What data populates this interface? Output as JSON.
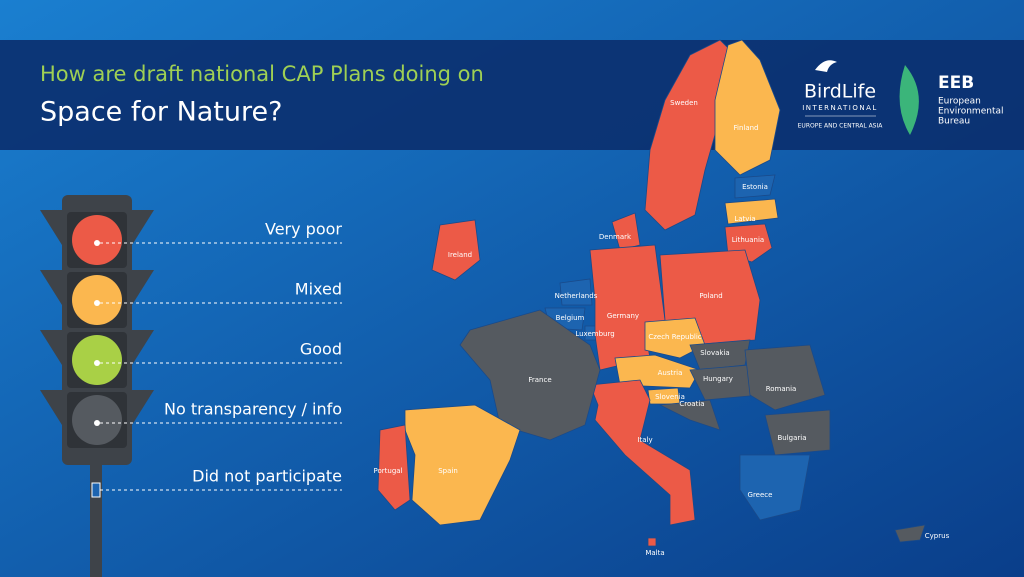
{
  "header": {
    "title_line1": "How are draft national CAP Plans doing on",
    "title_line2": "Space for Nature?"
  },
  "logos": {
    "birdlife": "BirdLife",
    "birdlife_sub": "INTERNATIONAL",
    "birdlife_region": "EUROPE AND CENTRAL ASIA",
    "eeb": "EEB",
    "eeb_line1": "European",
    "eeb_line2": "Environmental",
    "eeb_line3": "Bureau"
  },
  "legend": [
    {
      "label": "Very poor",
      "color": "#ec5a47"
    },
    {
      "label": "Mixed",
      "color": "#fbb74f"
    },
    {
      "label": "Good",
      "color": "#a9d046"
    },
    {
      "label": "No transparency / info",
      "color": "#555a60"
    },
    {
      "label": "Did not participate",
      "color": "#1d64b0"
    }
  ],
  "countries": [
    {
      "name": "Sweden",
      "color": "#ec5a47"
    },
    {
      "name": "Finland",
      "color": "#fbb74f"
    },
    {
      "name": "Estonia",
      "color": "#1d64b0"
    },
    {
      "name": "Latvia",
      "color": "#fbb74f"
    },
    {
      "name": "Lithuania",
      "color": "#ec5a47"
    },
    {
      "name": "Denmark",
      "color": "#ec5a47"
    },
    {
      "name": "Ireland",
      "color": "#ec5a47"
    },
    {
      "name": "Netherlands",
      "color": "#1d64b0"
    },
    {
      "name": "Belgium",
      "color": "#1d64b0"
    },
    {
      "name": "Luxemburg",
      "color": "#1d64b0"
    },
    {
      "name": "Germany",
      "color": "#ec5a47"
    },
    {
      "name": "Poland",
      "color": "#ec5a47"
    },
    {
      "name": "Czech Republic",
      "color": "#fbb74f"
    },
    {
      "name": "Slovakia",
      "color": "#555a60"
    },
    {
      "name": "Austria",
      "color": "#fbb74f"
    },
    {
      "name": "Hungary",
      "color": "#555a60"
    },
    {
      "name": "Slovenia",
      "color": "#fbb74f"
    },
    {
      "name": "Croatia",
      "color": "#555a60"
    },
    {
      "name": "Romania",
      "color": "#555a60"
    },
    {
      "name": "Bulgaria",
      "color": "#555a60"
    },
    {
      "name": "Greece",
      "color": "#1d64b0"
    },
    {
      "name": "Cyprus",
      "color": "#555a60"
    },
    {
      "name": "Italy",
      "color": "#ec5a47"
    },
    {
      "name": "Malta",
      "color": "#ec5a47"
    },
    {
      "name": "France",
      "color": "#555a60"
    },
    {
      "name": "Spain",
      "color": "#fbb74f"
    },
    {
      "name": "Portugal",
      "color": "#ec5a47"
    }
  ]
}
